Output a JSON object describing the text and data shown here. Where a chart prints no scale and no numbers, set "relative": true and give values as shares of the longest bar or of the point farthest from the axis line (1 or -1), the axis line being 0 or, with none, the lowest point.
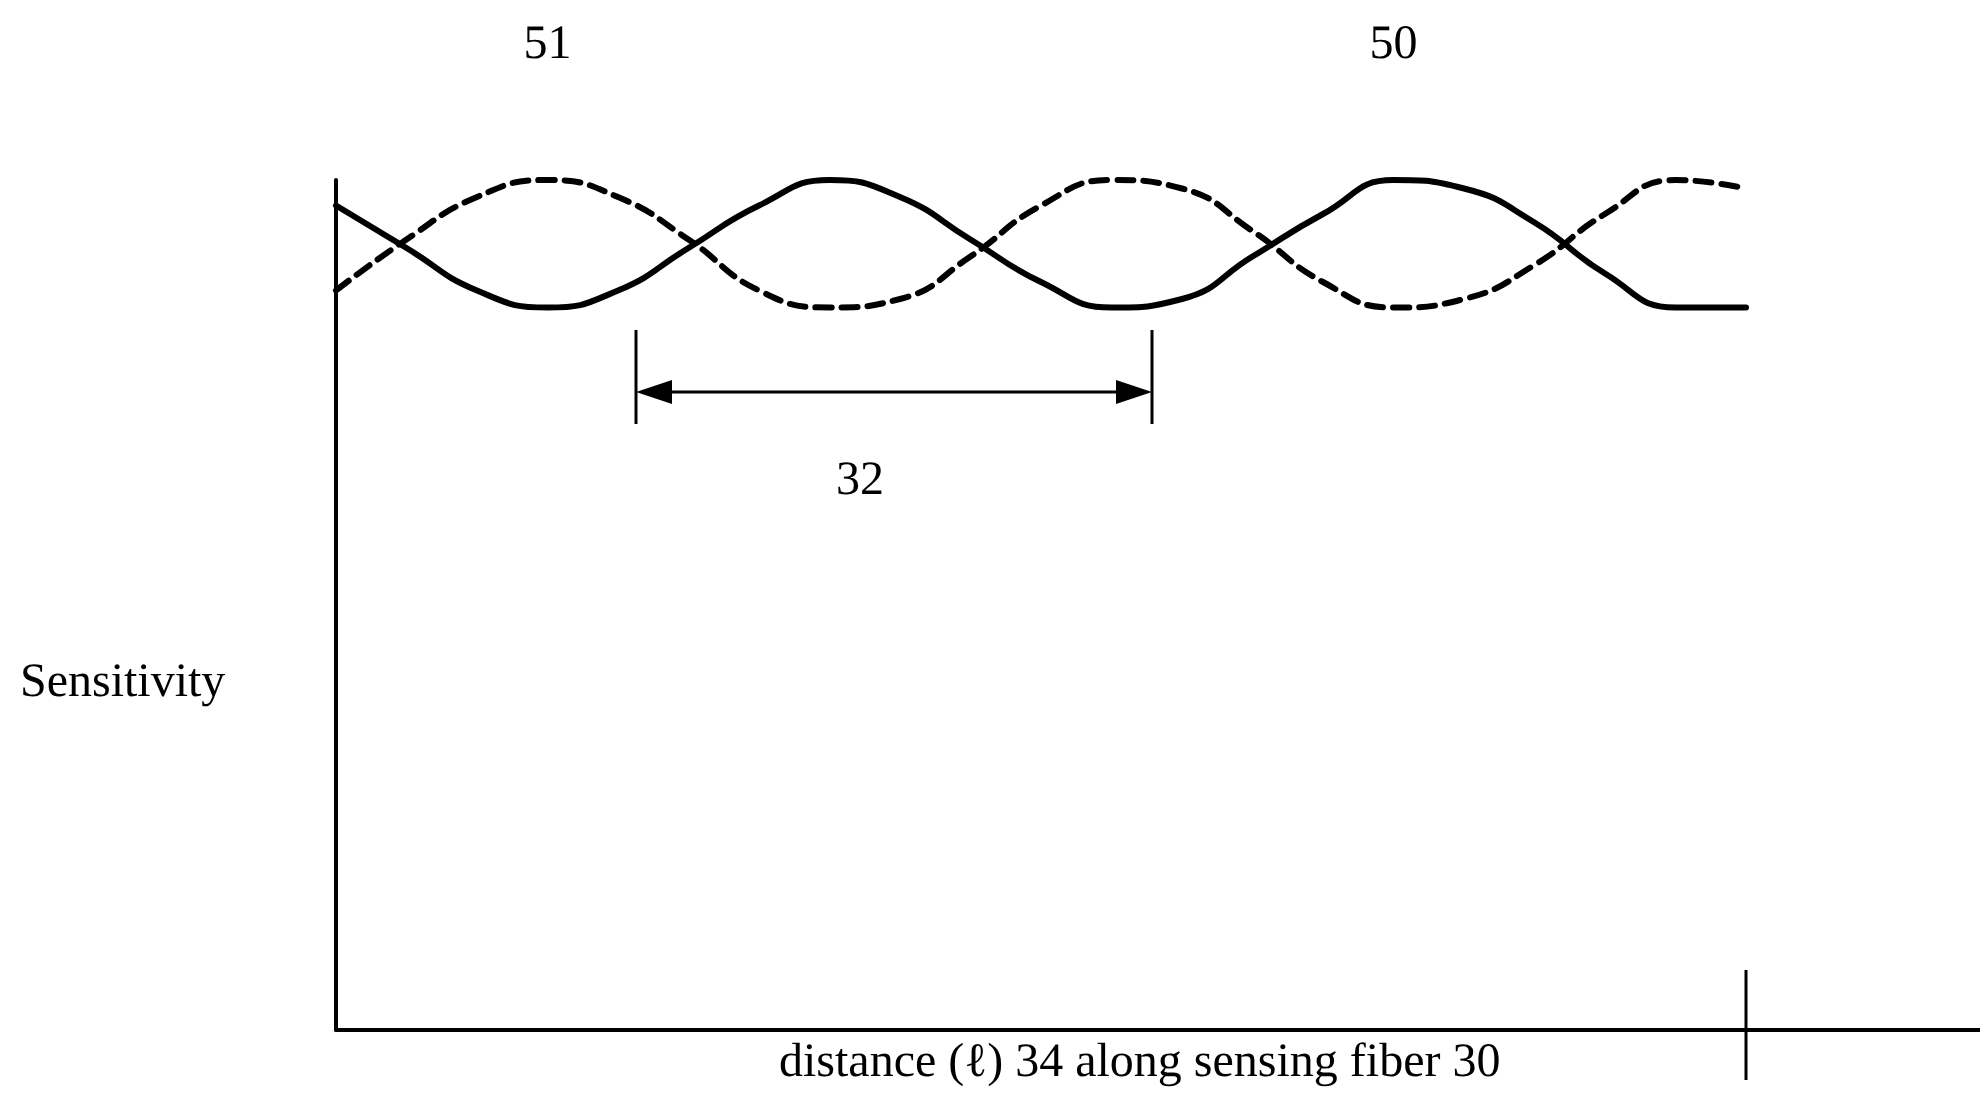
{
  "chart_data": {
    "type": "line",
    "relative": true,
    "xlabel": "distance (ℓ) 34 along sensing fiber 30",
    "ylabel": "Sensitivity",
    "annotations": [
      "32"
    ],
    "categories": [
      null,
      null,
      null,
      null,
      null,
      null,
      null,
      null,
      null,
      null,
      null,
      null,
      null,
      null,
      null,
      null,
      null,
      null,
      null,
      null,
      null
    ],
    "series": [
      {
        "name": "50",
        "color": "#000000",
        "line_style": "solid",
        "values": [
          0.97,
          0.92,
          0.87,
          0.85,
          0.87,
          0.92,
          0.97,
          1.0,
          0.98,
          0.93,
          0.88,
          0.85,
          0.86,
          0.91,
          0.96,
          1.0,
          0.99,
          0.95,
          0.89,
          0.85,
          0.85
        ]
      },
      {
        "name": "51",
        "color": "#000000",
        "line_style": "dashed",
        "values": [
          0.87,
          0.93,
          0.98,
          1.0,
          0.98,
          0.93,
          0.87,
          0.85,
          0.86,
          0.91,
          0.97,
          1.0,
          0.99,
          0.94,
          0.88,
          0.85,
          0.86,
          0.9,
          0.96,
          1.0,
          0.99
        ]
      }
    ],
    "grid": false,
    "legend": false,
    "marker": "none"
  }
}
